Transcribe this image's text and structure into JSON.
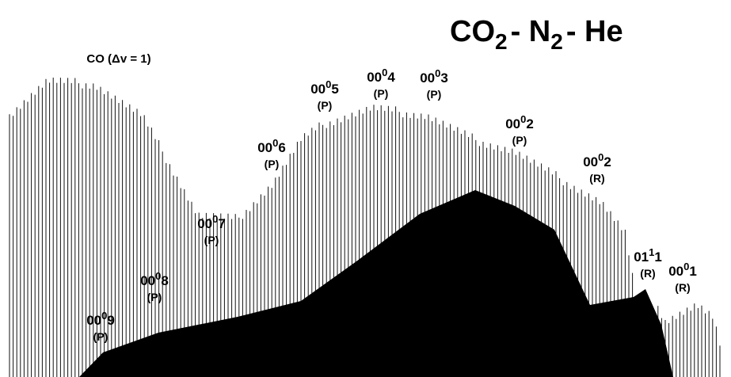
{
  "title": {
    "main": "CO",
    "sub1": "2",
    "mid": "- N",
    "sub2": "2",
    "end": "- He"
  },
  "co_label": "CO (Δv = 1)",
  "bands": [
    {
      "base": "00",
      "sup": "0",
      "tail": "9",
      "branch": "(P)"
    },
    {
      "base": "00",
      "sup": "0",
      "tail": "8",
      "branch": "(P)"
    },
    {
      "base": "00",
      "sup": "0",
      "tail": "7",
      "branch": "(P)"
    },
    {
      "base": "00",
      "sup": "0",
      "tail": "6",
      "branch": "(P)"
    },
    {
      "base": "00",
      "sup": "0",
      "tail": "5",
      "branch": "(P)"
    },
    {
      "base": "00",
      "sup": "0",
      "tail": "4",
      "branch": "(P)"
    },
    {
      "base": "00",
      "sup": "0",
      "tail": "3",
      "branch": "(P)"
    },
    {
      "base": "00",
      "sup": "0",
      "tail": "2",
      "branch": "(P)"
    },
    {
      "base": "00",
      "sup": "0",
      "tail": "2",
      "branch": "(R)"
    },
    {
      "base": "01",
      "sup": "1",
      "tail": "1",
      "branch": "(R)"
    },
    {
      "base": "00",
      "sup": "0",
      "tail": "1",
      "branch": "(R)"
    }
  ]
}
